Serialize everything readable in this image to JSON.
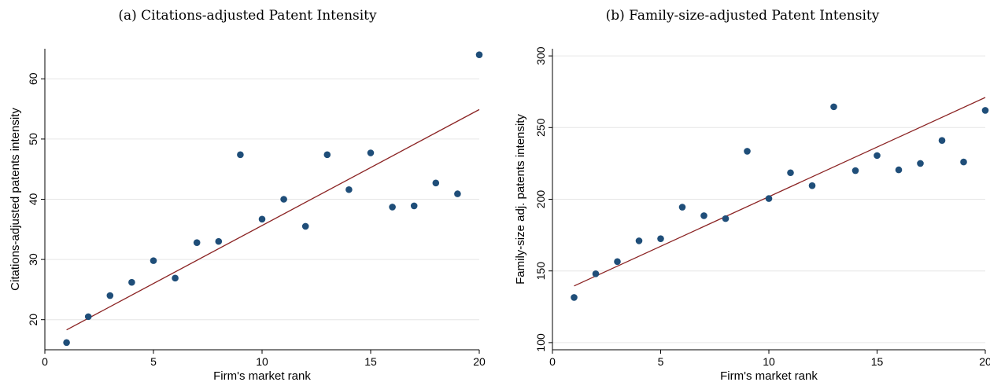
{
  "chart_data": [
    {
      "type": "scatter",
      "title": "(a) Citations-adjusted Patent Intensity",
      "xlabel": "Firm's market rank",
      "ylabel": "Citations-adjusted patents intensity",
      "xlim": [
        0,
        20
      ],
      "ylim": [
        15,
        65
      ],
      "xticks": [
        0,
        5,
        10,
        15,
        20
      ],
      "yticks": [
        20,
        30,
        40,
        50,
        60
      ],
      "grid": true,
      "point_color": "#1f4e79",
      "fit_color": "#8b2323",
      "x": [
        1,
        2,
        3,
        4,
        5,
        6,
        7,
        8,
        9,
        10,
        11,
        12,
        13,
        14,
        15,
        16,
        17,
        18,
        19,
        20
      ],
      "y": [
        16.2,
        20.5,
        24.0,
        26.2,
        29.8,
        26.9,
        32.8,
        33.0,
        47.4,
        36.7,
        40.0,
        35.5,
        47.4,
        41.6,
        47.7,
        38.7,
        38.9,
        42.7,
        40.9,
        64.0
      ],
      "fit_line": {
        "x": [
          1,
          20
        ],
        "y": [
          18.3,
          54.9
        ]
      }
    },
    {
      "type": "scatter",
      "title": "(b) Family-size-adjusted Patent Intensity",
      "xlabel": "Firm's market rank",
      "ylabel": "Family-size adj. patents intensity",
      "xlim": [
        0,
        20
      ],
      "ylim": [
        95,
        305
      ],
      "xticks": [
        0,
        5,
        10,
        15,
        20
      ],
      "yticks": [
        100,
        150,
        200,
        250,
        300
      ],
      "grid": true,
      "point_color": "#1f4e79",
      "fit_color": "#8b2323",
      "x": [
        1,
        2,
        3,
        4,
        5,
        6,
        7,
        8,
        9,
        10,
        11,
        12,
        13,
        14,
        15,
        16,
        17,
        18,
        19,
        20
      ],
      "y": [
        131.5,
        148.0,
        156.5,
        171.0,
        172.5,
        194.5,
        188.5,
        186.5,
        233.5,
        200.5,
        218.5,
        209.5,
        264.5,
        220.0,
        230.5,
        220.5,
        225.0,
        241.0,
        226.0,
        262.0
      ],
      "fit_line": {
        "x": [
          1,
          20
        ],
        "y": [
          139.5,
          271.0
        ]
      }
    }
  ]
}
